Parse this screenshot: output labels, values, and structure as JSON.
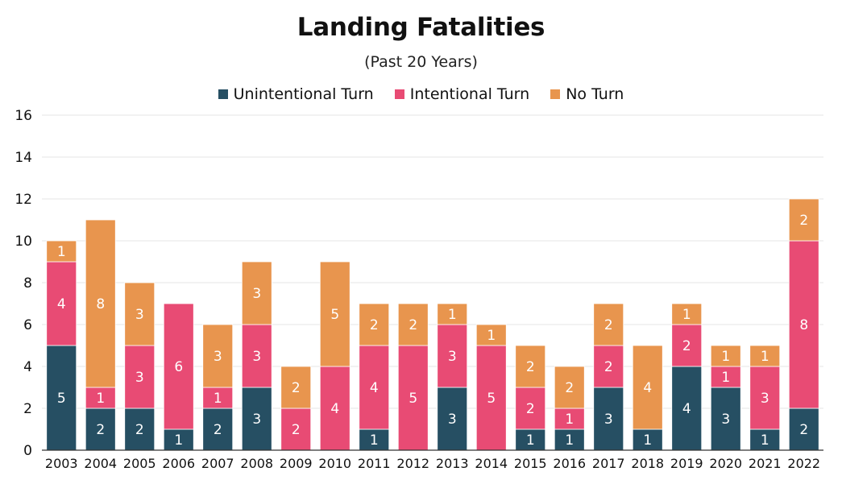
{
  "chart_data": {
    "type": "bar",
    "stacked": true,
    "title": "Landing Fatalities",
    "subtitle": "(Past 20 Years)",
    "xlabel": "",
    "ylabel": "",
    "ylim": [
      0,
      16
    ],
    "yticks": [
      0,
      2,
      4,
      6,
      8,
      10,
      12,
      14,
      16
    ],
    "grid": true,
    "legend_position": "top-center",
    "categories": [
      "2003",
      "2004",
      "2005",
      "2006",
      "2007",
      "2008",
      "2009",
      "2010",
      "2011",
      "2012",
      "2013",
      "2014",
      "2015",
      "2016",
      "2017",
      "2018",
      "2019",
      "2020",
      "2021",
      "2022"
    ],
    "series": [
      {
        "name": "Unintentional Turn",
        "color": "#264f63",
        "values": [
          5,
          2,
          2,
          1,
          2,
          3,
          0,
          0,
          1,
          0,
          3,
          0,
          1,
          1,
          3,
          1,
          4,
          3,
          1,
          2
        ]
      },
      {
        "name": "Intentional Turn",
        "color": "#e84b74",
        "values": [
          4,
          1,
          3,
          6,
          1,
          3,
          2,
          4,
          4,
          5,
          3,
          5,
          2,
          1,
          2,
          0,
          2,
          1,
          3,
          8
        ]
      },
      {
        "name": "No Turn",
        "color": "#e8954e",
        "values": [
          1,
          8,
          3,
          0,
          3,
          3,
          2,
          5,
          2,
          2,
          1,
          1,
          2,
          2,
          2,
          4,
          1,
          1,
          1,
          2
        ]
      }
    ]
  }
}
